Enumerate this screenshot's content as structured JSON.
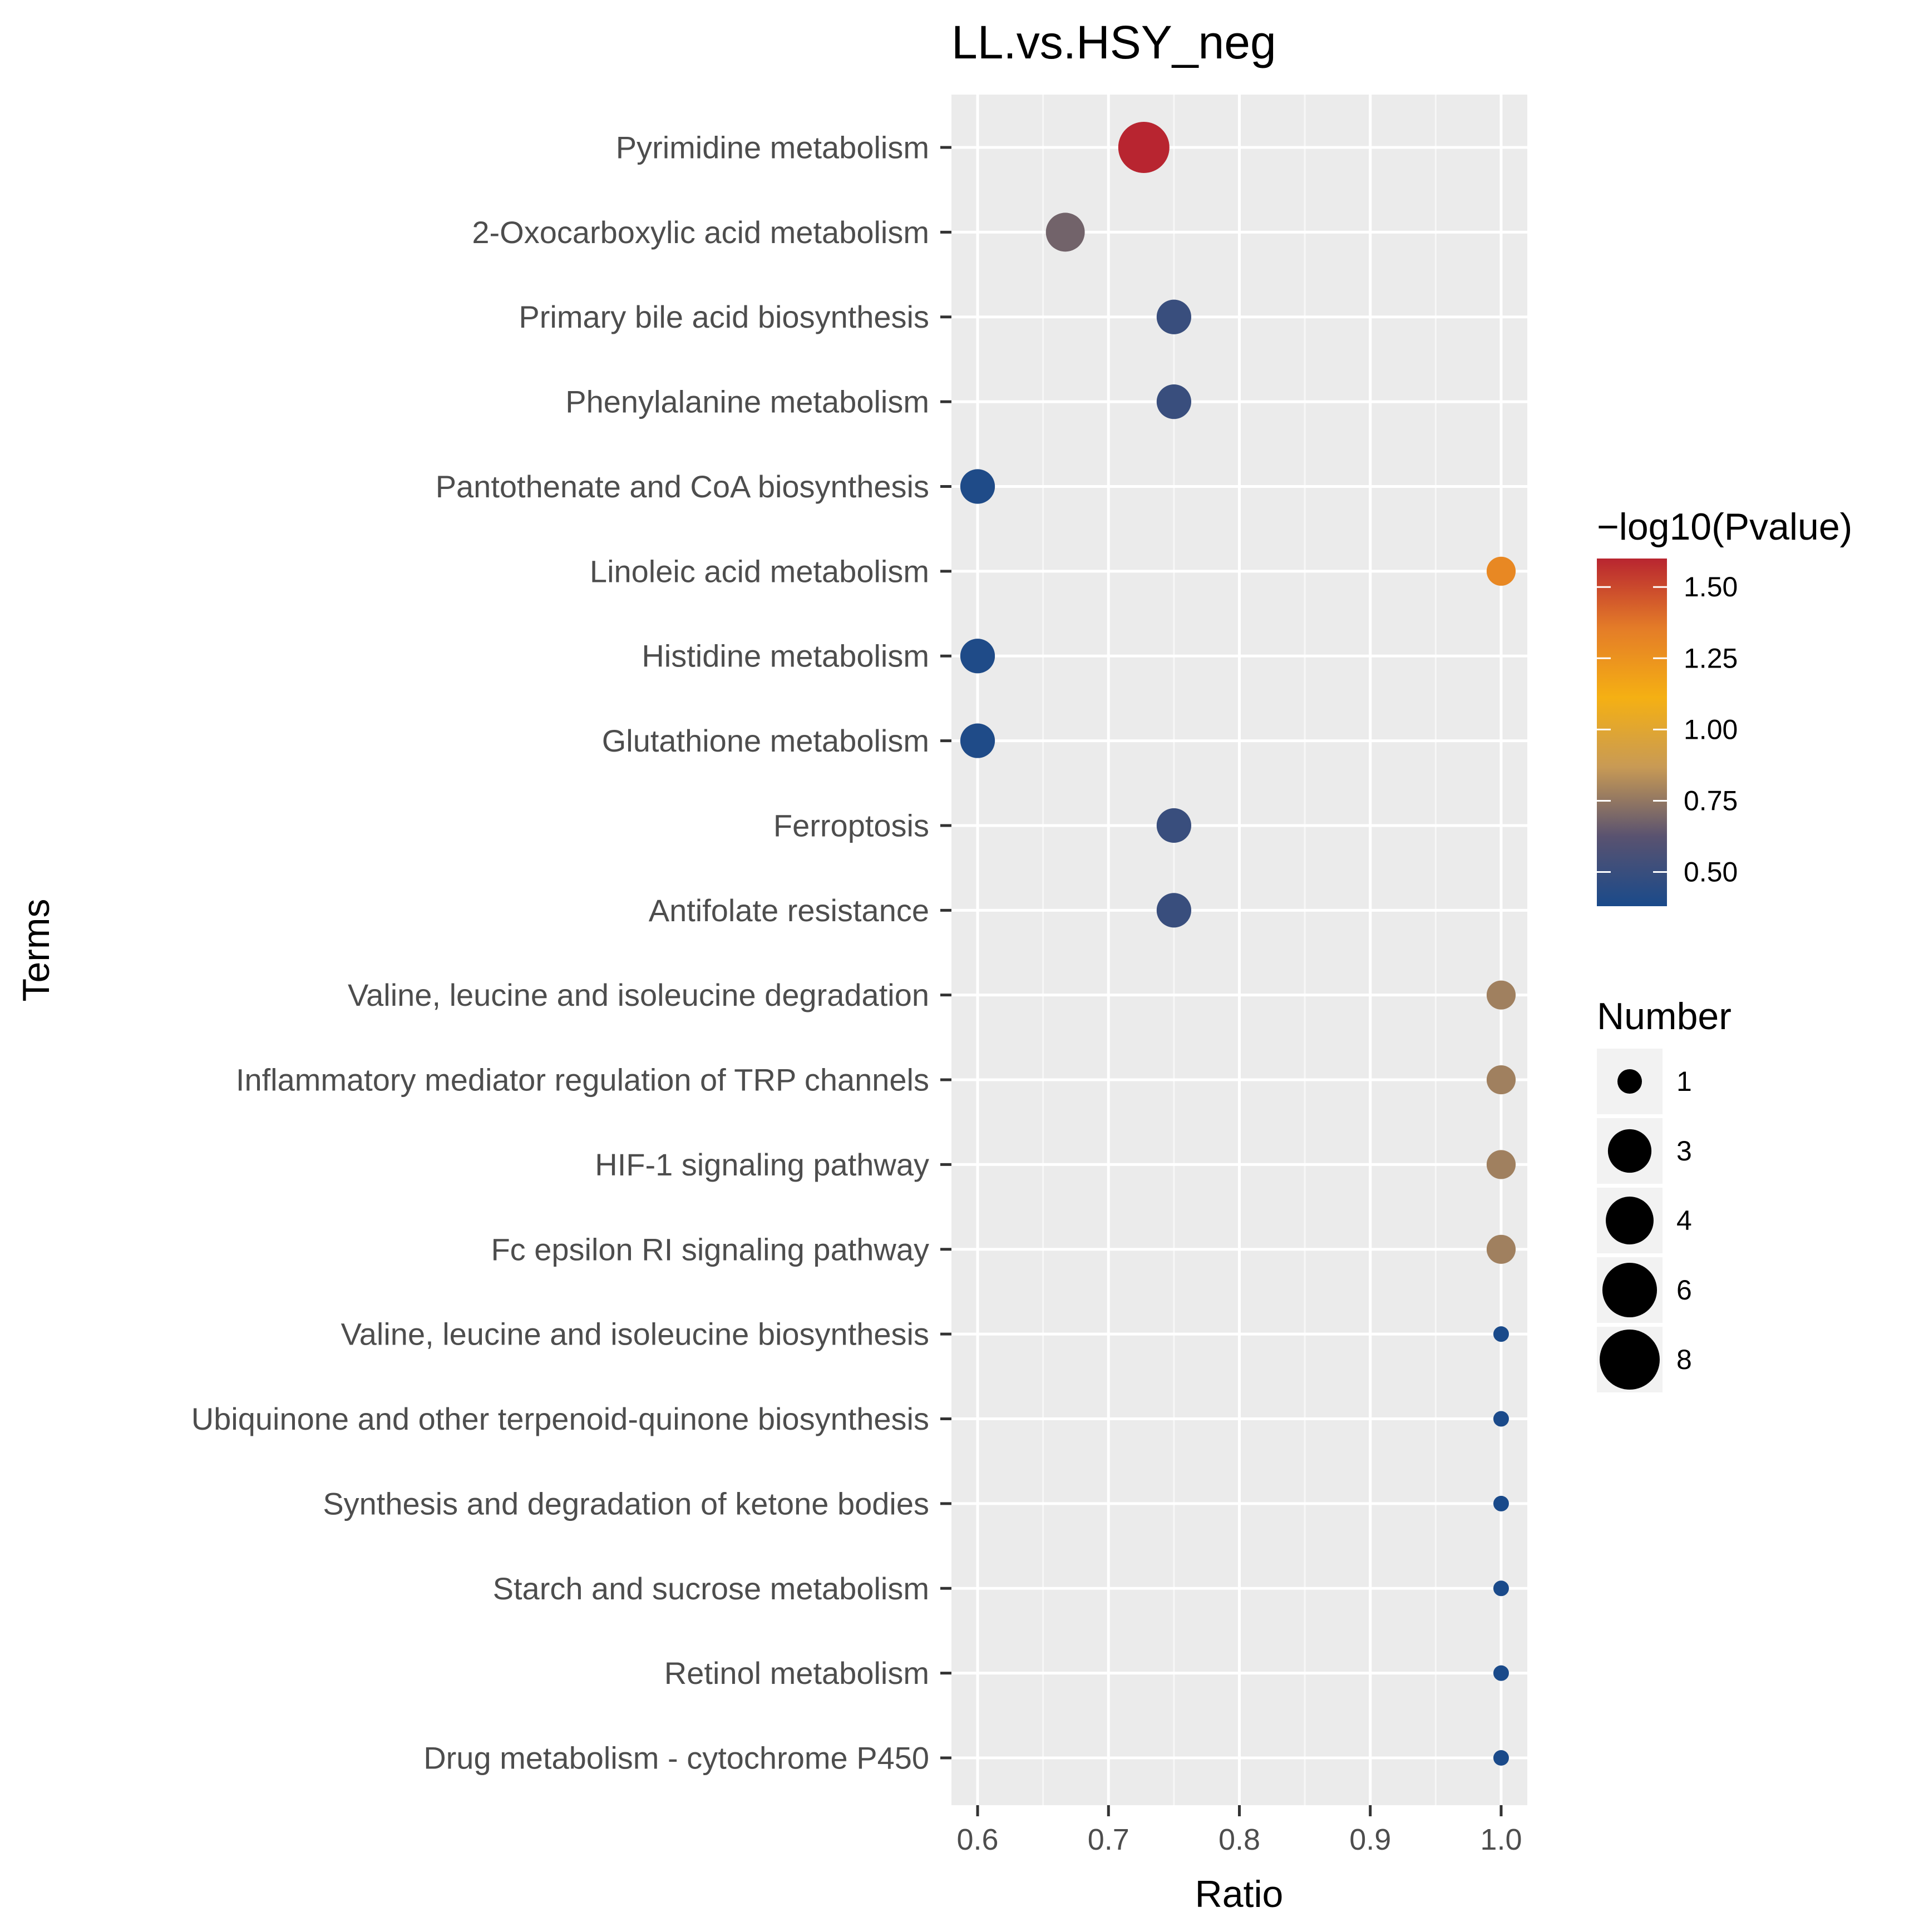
{
  "chart_data": {
    "type": "scatter",
    "title": "LL.vs.HSY_neg",
    "xlabel": "Ratio",
    "ylabel": "Terms",
    "xlim": [
      0.58,
      1.02
    ],
    "x_ticks": [
      "0.6",
      "0.7",
      "0.8",
      "0.9",
      "1.0"
    ],
    "x_tick_values": [
      0.6,
      0.7,
      0.8,
      0.9,
      1.0
    ],
    "grid": true,
    "color_legend": {
      "title": "−log10(Pvalue)",
      "range": [
        0.38,
        1.6
      ],
      "ticks": [
        "1.50",
        "1.25",
        "1.00",
        "0.75",
        "0.50"
      ],
      "tick_values": [
        1.5,
        1.25,
        1.0,
        0.75,
        0.5
      ],
      "stops": [
        "#1a4a8a",
        "#595270",
        "#c89a55",
        "#f5b013",
        "#e47c28",
        "#b82530"
      ],
      "placement": "right"
    },
    "size_legend": {
      "title": "Number",
      "labels": [
        "1",
        "3",
        "4",
        "6",
        "8"
      ],
      "values": [
        1,
        3,
        4,
        6,
        8
      ],
      "placement": "right"
    },
    "points": [
      {
        "term": "Pyrimidine metabolism",
        "ratio": 0.727,
        "neg_log10_p": 1.6,
        "number": 8
      },
      {
        "term": "2-Oxocarboxylic acid metabolism",
        "ratio": 0.667,
        "neg_log10_p": 0.68,
        "number": 4
      },
      {
        "term": "Primary bile acid biosynthesis",
        "ratio": 0.75,
        "neg_log10_p": 0.5,
        "number": 3
      },
      {
        "term": "Phenylalanine metabolism",
        "ratio": 0.75,
        "neg_log10_p": 0.5,
        "number": 3
      },
      {
        "term": "Pantothenate and CoA biosynthesis",
        "ratio": 0.6,
        "neg_log10_p": 0.4,
        "number": 3
      },
      {
        "term": "Linoleic acid metabolism",
        "ratio": 1.0,
        "neg_log10_p": 1.3,
        "number": 2
      },
      {
        "term": "Histidine metabolism",
        "ratio": 0.6,
        "neg_log10_p": 0.4,
        "number": 3
      },
      {
        "term": "Glutathione metabolism",
        "ratio": 0.6,
        "neg_log10_p": 0.4,
        "number": 3
      },
      {
        "term": "Ferroptosis",
        "ratio": 0.75,
        "neg_log10_p": 0.5,
        "number": 3
      },
      {
        "term": "Antifolate resistance",
        "ratio": 0.75,
        "neg_log10_p": 0.5,
        "number": 3
      },
      {
        "term": "Valine, leucine and isoleucine degradation",
        "ratio": 1.0,
        "neg_log10_p": 0.78,
        "number": 2
      },
      {
        "term": "Inflammatory mediator regulation of TRP channels",
        "ratio": 1.0,
        "neg_log10_p": 0.78,
        "number": 2
      },
      {
        "term": "HIF-1 signaling pathway",
        "ratio": 1.0,
        "neg_log10_p": 0.78,
        "number": 2
      },
      {
        "term": "Fc epsilon RI signaling pathway",
        "ratio": 1.0,
        "neg_log10_p": 0.78,
        "number": 2
      },
      {
        "term": "Valine, leucine and isoleucine biosynthesis",
        "ratio": 1.0,
        "neg_log10_p": 0.38,
        "number": 1
      },
      {
        "term": "Ubiquinone and other terpenoid-quinone biosynthesis",
        "ratio": 1.0,
        "neg_log10_p": 0.38,
        "number": 1
      },
      {
        "term": "Synthesis and degradation of ketone bodies",
        "ratio": 1.0,
        "neg_log10_p": 0.38,
        "number": 1
      },
      {
        "term": "Starch and sucrose metabolism",
        "ratio": 1.0,
        "neg_log10_p": 0.38,
        "number": 1
      },
      {
        "term": "Retinol metabolism",
        "ratio": 1.0,
        "neg_log10_p": 0.38,
        "number": 1
      },
      {
        "term": "Drug metabolism - cytochrome P450",
        "ratio": 1.0,
        "neg_log10_p": 0.38,
        "number": 1
      }
    ]
  }
}
